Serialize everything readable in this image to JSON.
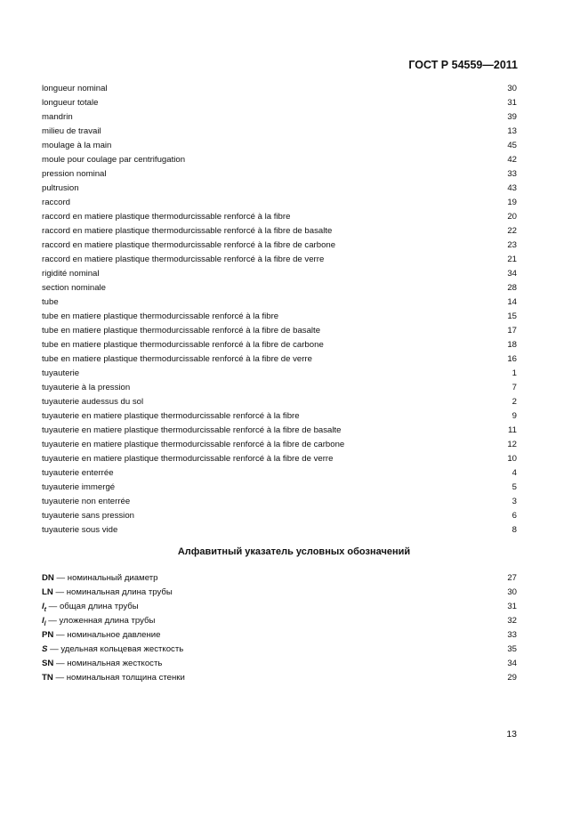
{
  "header": {
    "doc_code": "ГОСТ Р 54559—2011"
  },
  "terms": [
    {
      "term": "longueur nominal",
      "page": "30"
    },
    {
      "term": "longueur totale",
      "page": "31"
    },
    {
      "term": "mandrin",
      "page": "39"
    },
    {
      "term": "milieu de travail",
      "page": "13"
    },
    {
      "term": "moulage à la main",
      "page": "45"
    },
    {
      "term": "moule pour coulage par centrifugation",
      "page": "42"
    },
    {
      "term": "pression nominal",
      "page": "33"
    },
    {
      "term": "pultrusion",
      "page": "43"
    },
    {
      "term": "raccord",
      "page": "19"
    },
    {
      "term": "raccord en matiere plastique thermodurcissable renforcé à la fibre",
      "page": "20"
    },
    {
      "term": "raccord en matiere plastique thermodurcissable renforcé à la fibre de basalte",
      "page": "22"
    },
    {
      "term": "raccord en matiere plastique thermodurcissable renforcé à la fibre de carbone",
      "page": "23"
    },
    {
      "term": "raccord en matiere plastique thermodurcissable renforcé à la fibre de verre",
      "page": "21"
    },
    {
      "term": "rigidité nominal",
      "page": "34"
    },
    {
      "term": "section nominale",
      "page": "28"
    },
    {
      "term": "tube",
      "page": "14"
    },
    {
      "term": "tube en matiere plastique thermodurcissable renforcé à la fibre",
      "page": "15"
    },
    {
      "term": "tube en matiere plastique thermodurcissable renforcé à la fibre de basalte",
      "page": "17"
    },
    {
      "term": "tube en matiere plastique thermodurcissable renforcé à la fibre de carbone",
      "page": "18"
    },
    {
      "term": "tube en matiere plastique thermodurcissable renforcé à la fibre de verre",
      "page": "16"
    },
    {
      "term": "tuyauterie",
      "page": "1"
    },
    {
      "term": "tuyauterie à la pression",
      "page": "7"
    },
    {
      "term": "tuyauterie audessus du sol",
      "page": "2"
    },
    {
      "term": "tuyauterie en matiere plastique thermodurcissable renforcé à la fibre",
      "page": "9"
    },
    {
      "term": "tuyauterie en matiere plastique thermodurcissable renforcé à la fibre de basalte",
      "page": "11"
    },
    {
      "term": "tuyauterie en matiere plastique thermodurcissable renforcé à la fibre de carbone",
      "page": "12"
    },
    {
      "term": "tuyauterie en matiere plastique thermodurcissable renforcé à la fibre de verre",
      "page": "10"
    },
    {
      "term": "tuyauterie enterrée",
      "page": "4"
    },
    {
      "term": "tuyauterie immergé",
      "page": "5"
    },
    {
      "term": "tuyauterie non enterrée",
      "page": "3"
    },
    {
      "term": "tuyauterie sans pression",
      "page": "6"
    },
    {
      "term": "tuyauterie sous vide",
      "page": "8"
    }
  ],
  "symbols_heading": "Алфавитный указатель условных обозначений",
  "symbols": [
    {
      "symbol": "DN",
      "sub": "",
      "italic": false,
      "desc": " — номинальный диаметр",
      "page": "27"
    },
    {
      "symbol": "LN",
      "sub": "",
      "italic": false,
      "desc": " — номинальная длина трубы",
      "page": "30"
    },
    {
      "symbol": "l",
      "sub": "t",
      "italic": true,
      "desc": " — общая длина трубы",
      "page": "31"
    },
    {
      "symbol": "l",
      "sub": "l",
      "italic": true,
      "desc": " — уложенная длина трубы",
      "page": "32"
    },
    {
      "symbol": "PN",
      "sub": "",
      "italic": false,
      "desc": " — номинальное давление",
      "page": "33"
    },
    {
      "symbol": "S",
      "sub": "",
      "italic": true,
      "desc": " — удельная кольцевая жесткость",
      "page": "35"
    },
    {
      "symbol": "SN",
      "sub": "",
      "italic": false,
      "desc": " — номинальная жесткость",
      "page": "34"
    },
    {
      "symbol": "TN",
      "sub": "",
      "italic": false,
      "desc": " — номинальная толщина стенки",
      "page": "29"
    }
  ],
  "footer": {
    "page_number": "13"
  }
}
